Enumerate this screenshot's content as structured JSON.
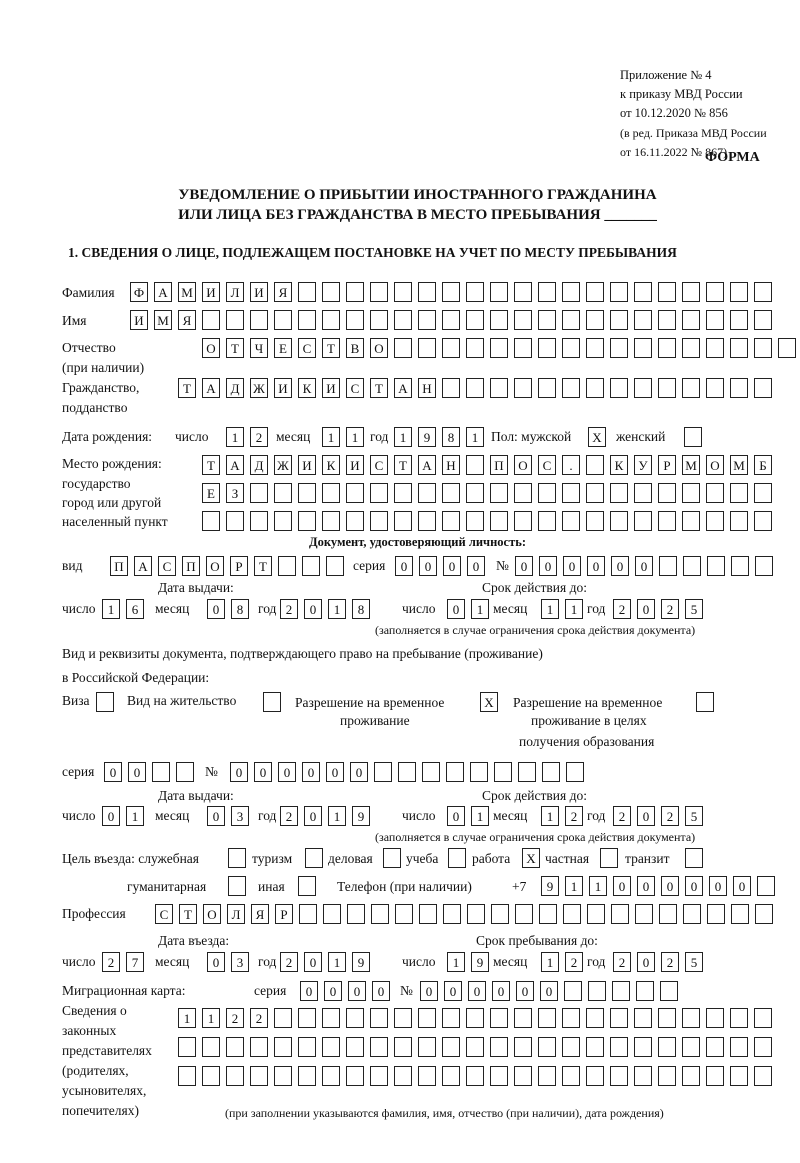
{
  "header": {
    "line1": "Приложение № 4",
    "line2": "к приказу МВД России",
    "line3": "от 10.12.2020 № 856",
    "line4": "(в ред. Приказа МВД России",
    "line5": "от 16.11.2022 № 867)",
    "forma": "ФОРМА"
  },
  "title": {
    "line1": "УВЕДОМЛЕНИЕ О ПРИБЫТИИ ИНОСТРАННОГО ГРАЖДАНИНА",
    "line2": "ИЛИ ЛИЦА БЕЗ ГРАЖДАНСТВА В МЕСТО ПРЕБЫВАНИЯ _______"
  },
  "section1": "1. СВЕДЕНИЯ О ЛИЦЕ, ПОДЛЕЖАЩЕМ ПОСТАНОВКЕ НА УЧЕТ ПО МЕСТУ ПРЕБЫВАНИЯ",
  "labels": {
    "surname": "Фамилия",
    "name": "Имя",
    "patronymic": "Отчество",
    "patronymic_note": "(при наличии)",
    "citizenship": "Гражданство,",
    "citizenship2": "подданство",
    "birth_date": "Дата рождения:",
    "day": "число",
    "month": "месяц",
    "year": "год",
    "sex": "Пол: мужской",
    "female": "женский",
    "birthplace1": "Место рождения:",
    "birthplace2": "государство",
    "birthplace3": "город или другой",
    "birthplace4": "населенный пункт",
    "id_doc": "Документ, удостоверяющий личность:",
    "kind": "вид",
    "series": "серия",
    "number": "№",
    "issue_date": "Дата выдачи:",
    "valid_until": "Срок действия до:",
    "valid_note": "(заполняется в случае ограничения срока действия документа)",
    "right_doc1": "Вид и реквизиты документа, подтверждающего право на пребывание (проживание)",
    "right_doc2": "в Российской Федерации:",
    "visa": "Виза",
    "residence": "Вид на жительство",
    "trp1": "Разрешение на временное",
    "trp2": "проживание",
    "trpe1": "Разрешение на временное",
    "trpe2": "проживание в целях",
    "trpe3": "получения образования",
    "purpose": "Цель въезда: служебная",
    "tourism": "туризм",
    "business": "деловая",
    "study": "учеба",
    "work": "работа",
    "private": "частная",
    "transit": "транзит",
    "humanitarian": "гуманитарная",
    "other": "иная",
    "phone": "Телефон (при наличии)",
    "phone_prefix": "+7",
    "profession": "Профессия",
    "entry_date": "Дата въезда:",
    "stay_until": "Срок пребывания до:",
    "migration_card": "Миграционная карта:",
    "reps1": "Сведения о",
    "reps2": "законных",
    "reps3": "представителях",
    "reps4": "(родителях,",
    "reps5": "усыновителях,",
    "reps6": "попечителях)",
    "reps_note": "(при заполнении указываются фамилия, имя, отчество (при наличии), дата рождения)"
  },
  "cells": {
    "surname": [
      "Ф",
      "А",
      "М",
      "И",
      "Л",
      "И",
      "Я",
      "",
      "",
      "",
      "",
      "",
      "",
      "",
      "",
      "",
      "",
      "",
      "",
      "",
      "",
      "",
      "",
      "",
      "",
      "",
      ""
    ],
    "name": [
      "И",
      "М",
      "Я",
      "",
      "",
      "",
      "",
      "",
      "",
      "",
      "",
      "",
      "",
      "",
      "",
      "",
      "",
      "",
      "",
      "",
      "",
      "",
      "",
      "",
      "",
      "",
      ""
    ],
    "patronymic": [
      "О",
      "Т",
      "Ч",
      "Е",
      "С",
      "Т",
      "В",
      "О",
      "",
      "",
      "",
      "",
      "",
      "",
      "",
      "",
      "",
      "",
      "",
      "",
      "",
      "",
      "",
      "",
      ""
    ],
    "citizenship": [
      "Т",
      "А",
      "Д",
      "Ж",
      "И",
      "К",
      "И",
      "С",
      "Т",
      "А",
      "Н",
      "",
      "",
      "",
      "",
      "",
      "",
      "",
      "",
      "",
      "",
      "",
      "",
      "",
      ""
    ],
    "birth_day": [
      "1",
      "2"
    ],
    "birth_month": [
      "1",
      "1"
    ],
    "birth_year": [
      "1",
      "9",
      "8",
      "1"
    ],
    "male": [
      "X"
    ],
    "female": [
      ""
    ],
    "birthplace1": [
      "Т",
      "А",
      "Д",
      "Ж",
      "И",
      "К",
      "И",
      "С",
      "Т",
      "А",
      "Н",
      "",
      "П",
      "О",
      "С",
      ".",
      "",
      "К",
      "У",
      "Р",
      "М",
      "О",
      "М",
      "Б"
    ],
    "birthplace2": [
      "Е",
      "З",
      "",
      "",
      "",
      "",
      "",
      "",
      "",
      "",
      "",
      "",
      "",
      "",
      "",
      "",
      "",
      "",
      "",
      "",
      "",
      "",
      "",
      ""
    ],
    "birthplace3": [
      "",
      "",
      "",
      "",
      "",
      "",
      "",
      "",
      "",
      "",
      "",
      "",
      "",
      "",
      "",
      "",
      "",
      "",
      "",
      "",
      "",
      "",
      "",
      ""
    ],
    "doc_kind": [
      "П",
      "А",
      "С",
      "П",
      "О",
      "Р",
      "Т",
      "",
      "",
      ""
    ],
    "doc_series": [
      "0",
      "0",
      "0",
      "0"
    ],
    "doc_number": [
      "0",
      "0",
      "0",
      "0",
      "0",
      "0",
      "",
      "",
      "",
      "",
      ""
    ],
    "doc_issue_day": [
      "1",
      "6"
    ],
    "doc_issue_month": [
      "0",
      "8"
    ],
    "doc_issue_year": [
      "2",
      "0",
      "1",
      "8"
    ],
    "doc_valid_day": [
      "0",
      "1"
    ],
    "doc_valid_month": [
      "1",
      "1"
    ],
    "doc_valid_year": [
      "2",
      "0",
      "2",
      "5"
    ],
    "visa": [
      ""
    ],
    "residence": [
      ""
    ],
    "trp": [
      "X"
    ],
    "trpe": [
      ""
    ],
    "rd_series": [
      "0",
      "0",
      "",
      ""
    ],
    "rd_number": [
      "0",
      "0",
      "0",
      "0",
      "0",
      "0",
      "",
      "",
      "",
      "",
      "",
      "",
      "",
      "",
      ""
    ],
    "rd_issue_day": [
      "0",
      "1"
    ],
    "rd_issue_month": [
      "0",
      "3"
    ],
    "rd_issue_year": [
      "2",
      "0",
      "1",
      "9"
    ],
    "rd_valid_day": [
      "0",
      "1"
    ],
    "rd_valid_month": [
      "1",
      "2"
    ],
    "rd_valid_year": [
      "2",
      "0",
      "2",
      "5"
    ],
    "p_service": [
      ""
    ],
    "p_tourism": [
      ""
    ],
    "p_business": [
      ""
    ],
    "p_study": [
      ""
    ],
    "p_work": [
      "X"
    ],
    "p_private": [
      ""
    ],
    "p_transit": [
      ""
    ],
    "p_humanitarian": [
      ""
    ],
    "p_other": [
      ""
    ],
    "phone": [
      "9",
      "1",
      "1",
      "0",
      "0",
      "0",
      "0",
      "0",
      "0",
      ""
    ],
    "profession": [
      "С",
      "Т",
      "О",
      "Л",
      "Я",
      "Р",
      "",
      "",
      "",
      "",
      "",
      "",
      "",
      "",
      "",
      "",
      "",
      "",
      "",
      "",
      "",
      "",
      "",
      "",
      "",
      ""
    ],
    "entry_day": [
      "2",
      "7"
    ],
    "entry_month": [
      "0",
      "3"
    ],
    "entry_year": [
      "2",
      "0",
      "1",
      "9"
    ],
    "stay_day": [
      "1",
      "9"
    ],
    "stay_month": [
      "1",
      "2"
    ],
    "stay_year": [
      "2",
      "0",
      "2",
      "5"
    ],
    "mc_series": [
      "0",
      "0",
      "0",
      "0"
    ],
    "mc_number": [
      "0",
      "0",
      "0",
      "0",
      "0",
      "0",
      "",
      "",
      "",
      "",
      ""
    ],
    "reps1": [
      "1",
      "1",
      "2",
      "2",
      "",
      "",
      "",
      "",
      "",
      "",
      "",
      "",
      "",
      "",
      "",
      "",
      "",
      "",
      "",
      "",
      "",
      "",
      "",
      "",
      ""
    ],
    "reps2": [
      "",
      "",
      "",
      "",
      "",
      "",
      "",
      "",
      "",
      "",
      "",
      "",
      "",
      "",
      "",
      "",
      "",
      "",
      "",
      "",
      "",
      "",
      "",
      "",
      ""
    ],
    "reps3": [
      "",
      "",
      "",
      "",
      "",
      "",
      "",
      "",
      "",
      "",
      "",
      "",
      "",
      "",
      "",
      "",
      "",
      "",
      "",
      "",
      "",
      "",
      "",
      "",
      ""
    ]
  }
}
